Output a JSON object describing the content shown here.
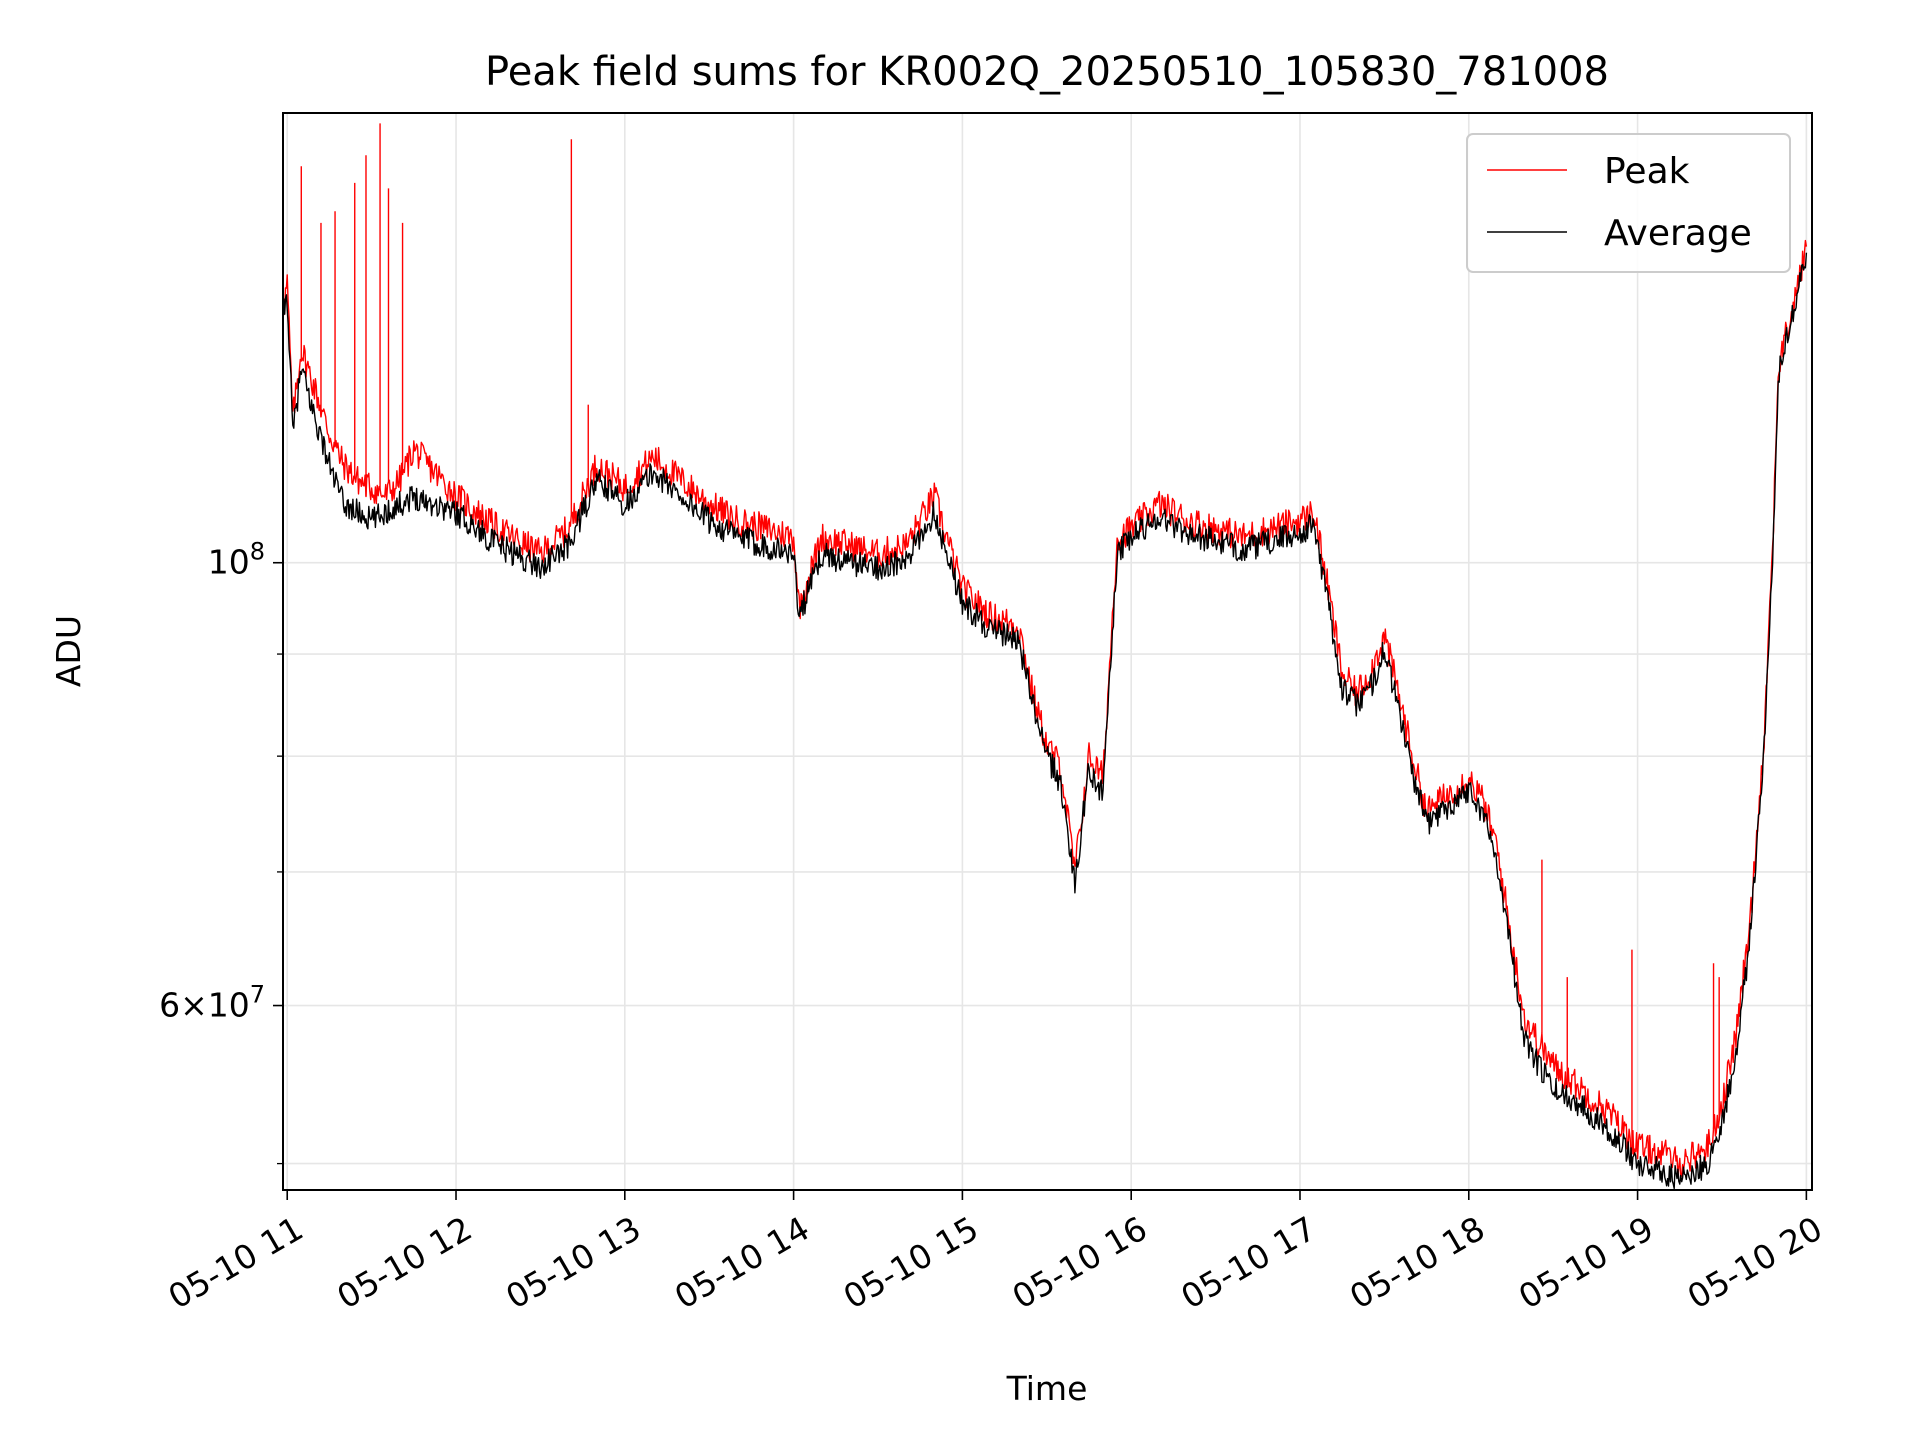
{
  "chart_data": {
    "type": "line",
    "title": "Peak field sums for KR002Q_20250510_105830_781008",
    "xlabel": "Time",
    "ylabel": "ADU",
    "y_scale": "log",
    "x_range": [
      "2025-05-10 10:58:30",
      "2025-05-10 20:02:00"
    ],
    "ylim": [
      48500000,
      168000000
    ],
    "grid": true,
    "legend_position": "upper right",
    "x_ticks": [
      {
        "value": "2025-05-10 11:00",
        "label": "05-10 11"
      },
      {
        "value": "2025-05-10 12:00",
        "label": "05-10 12"
      },
      {
        "value": "2025-05-10 13:00",
        "label": "05-10 13"
      },
      {
        "value": "2025-05-10 14:00",
        "label": "05-10 14"
      },
      {
        "value": "2025-05-10 15:00",
        "label": "05-10 15"
      },
      {
        "value": "2025-05-10 16:00",
        "label": "05-10 16"
      },
      {
        "value": "2025-05-10 17:00",
        "label": "05-10 17"
      },
      {
        "value": "2025-05-10 18:00",
        "label": "05-10 18"
      },
      {
        "value": "2025-05-10 19:00",
        "label": "05-10 19"
      },
      {
        "value": "2025-05-10 20:00",
        "label": "05-10 20"
      }
    ],
    "y_major_ticks": [
      {
        "value": 100000000,
        "label_base": "10",
        "label_exp": "8"
      },
      {
        "value": 60000000,
        "label_base": "6×10",
        "label_exp": "7"
      }
    ],
    "y_minor_ticks": [
      50000000,
      70000000,
      80000000,
      90000000
    ],
    "series": [
      {
        "name": "Peak",
        "color": "#ff0000",
        "x": [
          "2025-05-10 10:58:30",
          "2025-05-10 11:00",
          "2025-05-10 11:02",
          "2025-05-10 11:05",
          "2025-05-10 11:10",
          "2025-05-10 11:15",
          "2025-05-10 11:20",
          "2025-05-10 11:25",
          "2025-05-10 11:30",
          "2025-05-10 11:35",
          "2025-05-10 11:40",
          "2025-05-10 11:45",
          "2025-05-10 12:00",
          "2025-05-10 12:15",
          "2025-05-10 12:30",
          "2025-05-10 12:40",
          "2025-05-10 12:50",
          "2025-05-10 13:00",
          "2025-05-10 13:10",
          "2025-05-10 13:20",
          "2025-05-10 13:30",
          "2025-05-10 13:40",
          "2025-05-10 13:50",
          "2025-05-10 14:00",
          "2025-05-10 14:02",
          "2025-05-10 14:10",
          "2025-05-10 14:20",
          "2025-05-10 14:30",
          "2025-05-10 14:40",
          "2025-05-10 14:50",
          "2025-05-10 15:00",
          "2025-05-10 15:10",
          "2025-05-10 15:20",
          "2025-05-10 15:25",
          "2025-05-10 15:30",
          "2025-05-10 15:35",
          "2025-05-10 15:40",
          "2025-05-10 15:45",
          "2025-05-10 15:50",
          "2025-05-10 15:55",
          "2025-05-10 16:00",
          "2025-05-10 16:10",
          "2025-05-10 16:20",
          "2025-05-10 16:30",
          "2025-05-10 16:40",
          "2025-05-10 16:50",
          "2025-05-10 17:00",
          "2025-05-10 17:05",
          "2025-05-10 17:10",
          "2025-05-10 17:15",
          "2025-05-10 17:20",
          "2025-05-10 17:25",
          "2025-05-10 17:30",
          "2025-05-10 17:35",
          "2025-05-10 17:40",
          "2025-05-10 17:45",
          "2025-05-10 17:50",
          "2025-05-10 18:00",
          "2025-05-10 18:05",
          "2025-05-10 18:10",
          "2025-05-10 18:15",
          "2025-05-10 18:20",
          "2025-05-10 18:30",
          "2025-05-10 18:40",
          "2025-05-10 18:50",
          "2025-05-10 19:00",
          "2025-05-10 19:10",
          "2025-05-10 19:15",
          "2025-05-10 19:20",
          "2025-05-10 19:25",
          "2025-05-10 19:30",
          "2025-05-10 19:35",
          "2025-05-10 19:40",
          "2025-05-10 19:45",
          "2025-05-10 19:48",
          "2025-05-10 19:50",
          "2025-05-10 19:55",
          "2025-05-10 20:00"
        ],
        "values": [
          134000000,
          138000000,
          118000000,
          128000000,
          122000000,
          116000000,
          112000000,
          110000000,
          109000000,
          108000000,
          110000000,
          114000000,
          108000000,
          104000000,
          101000000,
          104000000,
          112000000,
          109000000,
          113000000,
          110000000,
          107000000,
          105000000,
          104000000,
          103000000,
          95000000,
          103000000,
          102000000,
          101000000,
          102000000,
          108000000,
          97000000,
          94000000,
          93000000,
          86000000,
          81000000,
          79000000,
          70000000,
          80000000,
          78000000,
          103000000,
          104000000,
          107000000,
          105000000,
          104000000,
          103000000,
          104000000,
          105000000,
          106000000,
          97000000,
          88000000,
          86000000,
          88000000,
          92000000,
          86000000,
          80000000,
          75000000,
          76000000,
          78000000,
          76000000,
          72000000,
          65000000,
          59000000,
          56000000,
          54500000,
          53000000,
          51000000,
          50500000,
          50000000,
          50500000,
          51000000,
          53500000,
          58000000,
          66000000,
          82000000,
          102000000,
          125000000,
          134000000,
          144000000
        ],
        "spikes": [
          {
            "x": "2025-05-10 11:05",
            "value": 158000000
          },
          {
            "x": "2025-05-10 11:12",
            "value": 148000000
          },
          {
            "x": "2025-05-10 11:17",
            "value": 150000000
          },
          {
            "x": "2025-05-10 11:24",
            "value": 155000000
          },
          {
            "x": "2025-05-10 11:28",
            "value": 160000000
          },
          {
            "x": "2025-05-10 11:33",
            "value": 166000000
          },
          {
            "x": "2025-05-10 11:36",
            "value": 154000000
          },
          {
            "x": "2025-05-10 11:41",
            "value": 148000000
          },
          {
            "x": "2025-05-10 12:41",
            "value": 163000000
          },
          {
            "x": "2025-05-10 12:47",
            "value": 120000000
          },
          {
            "x": "2025-05-10 18:26",
            "value": 71000000
          },
          {
            "x": "2025-05-10 18:35",
            "value": 62000000
          },
          {
            "x": "2025-05-10 18:58",
            "value": 64000000
          },
          {
            "x": "2025-05-10 19:27",
            "value": 63000000
          },
          {
            "x": "2025-05-10 19:29",
            "value": 62000000
          }
        ]
      },
      {
        "name": "Average",
        "color": "#000000",
        "x": [
          "2025-05-10 10:58:30",
          "2025-05-10 11:00",
          "2025-05-10 11:02",
          "2025-05-10 11:05",
          "2025-05-10 11:10",
          "2025-05-10 11:15",
          "2025-05-10 11:20",
          "2025-05-10 11:25",
          "2025-05-10 11:30",
          "2025-05-10 11:35",
          "2025-05-10 11:40",
          "2025-05-10 11:45",
          "2025-05-10 12:00",
          "2025-05-10 12:15",
          "2025-05-10 12:30",
          "2025-05-10 12:40",
          "2025-05-10 12:50",
          "2025-05-10 13:00",
          "2025-05-10 13:10",
          "2025-05-10 13:20",
          "2025-05-10 13:30",
          "2025-05-10 13:40",
          "2025-05-10 13:50",
          "2025-05-10 14:00",
          "2025-05-10 14:02",
          "2025-05-10 14:10",
          "2025-05-10 14:20",
          "2025-05-10 14:30",
          "2025-05-10 14:40",
          "2025-05-10 14:50",
          "2025-05-10 15:00",
          "2025-05-10 15:10",
          "2025-05-10 15:20",
          "2025-05-10 15:25",
          "2025-05-10 15:30",
          "2025-05-10 15:35",
          "2025-05-10 15:40",
          "2025-05-10 15:45",
          "2025-05-10 15:50",
          "2025-05-10 15:55",
          "2025-05-10 16:00",
          "2025-05-10 16:10",
          "2025-05-10 16:20",
          "2025-05-10 16:30",
          "2025-05-10 16:40",
          "2025-05-10 16:50",
          "2025-05-10 17:00",
          "2025-05-10 17:05",
          "2025-05-10 17:10",
          "2025-05-10 17:15",
          "2025-05-10 17:20",
          "2025-05-10 17:25",
          "2025-05-10 17:30",
          "2025-05-10 17:35",
          "2025-05-10 17:40",
          "2025-05-10 17:45",
          "2025-05-10 17:50",
          "2025-05-10 18:00",
          "2025-05-10 18:05",
          "2025-05-10 18:10",
          "2025-05-10 18:15",
          "2025-05-10 18:20",
          "2025-05-10 18:30",
          "2025-05-10 18:40",
          "2025-05-10 18:50",
          "2025-05-10 19:00",
          "2025-05-10 19:10",
          "2025-05-10 19:15",
          "2025-05-10 19:20",
          "2025-05-10 19:25",
          "2025-05-10 19:30",
          "2025-05-10 19:35",
          "2025-05-10 19:40",
          "2025-05-10 19:45",
          "2025-05-10 19:48",
          "2025-05-10 19:50",
          "2025-05-10 19:55",
          "2025-05-10 20:00"
        ],
        "values": [
          133000000,
          136000000,
          116000000,
          125000000,
          118000000,
          112000000,
          107000000,
          106000000,
          105000000,
          106000000,
          107000000,
          108000000,
          106000000,
          102000000,
          99500000,
          102000000,
          110000000,
          107000000,
          111000000,
          108000000,
          105000000,
          103000000,
          102000000,
          101000000,
          94000000,
          101000000,
          100000000,
          99500000,
          100000000,
          106000000,
          95500000,
          92500000,
          91500000,
          85000000,
          80000000,
          77500000,
          69000000,
          79000000,
          76500000,
          101000000,
          103000000,
          105500000,
          103500000,
          102500000,
          101500000,
          102500000,
          103500000,
          104500000,
          95500000,
          86500000,
          85000000,
          86500000,
          90500000,
          84500000,
          78500000,
          74000000,
          75000000,
          77000000,
          75000000,
          71000000,
          64000000,
          57500000,
          54500000,
          53500000,
          52000000,
          50000000,
          49500000,
          49000000,
          49500000,
          50000000,
          52500000,
          56500000,
          65000000,
          81000000,
          101000000,
          124000000,
          133000000,
          143000000
        ]
      }
    ]
  }
}
